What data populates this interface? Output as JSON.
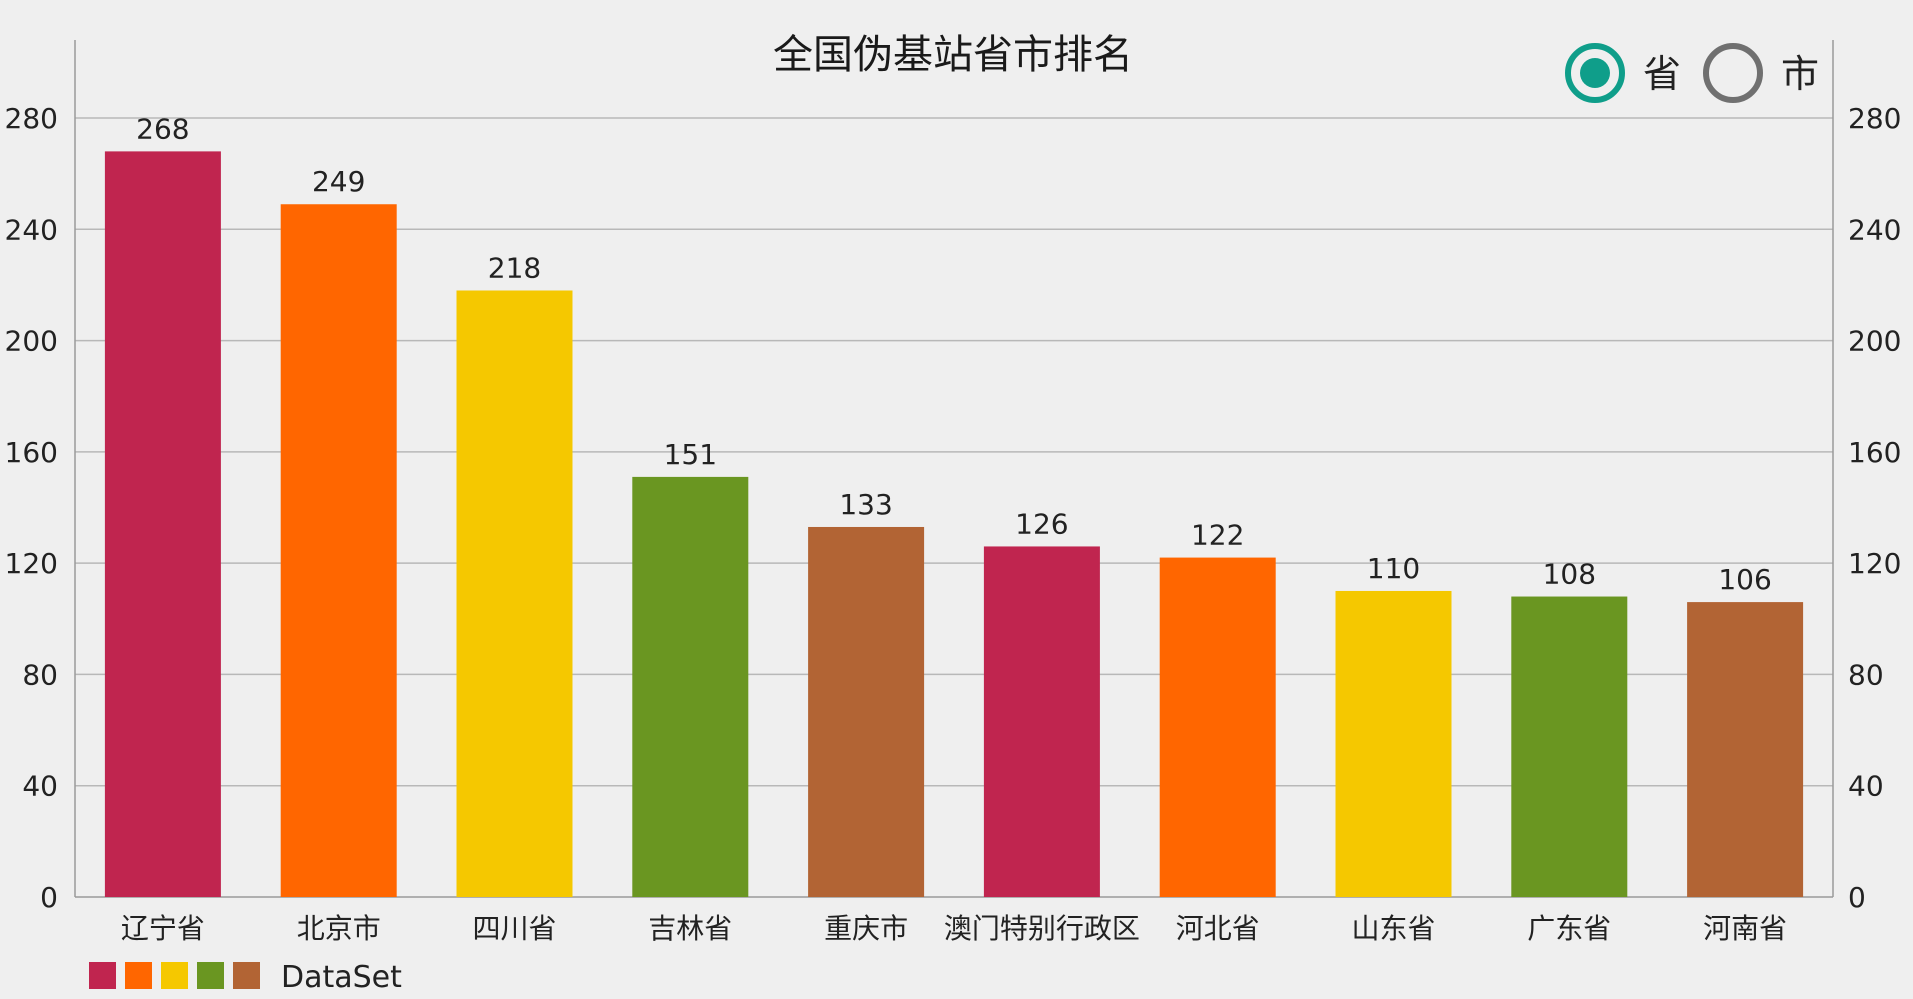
{
  "chart_data": {
    "type": "bar",
    "title": "全国伪基站省市排名",
    "categories": [
      "辽宁省",
      "北京市",
      "四川省",
      "吉林省",
      "重庆市",
      "澳门特别行政区",
      "河北省",
      "山东省",
      "广东省",
      "河南省"
    ],
    "series": [
      {
        "name": "DataSet",
        "values": [
          268,
          249,
          218,
          151,
          133,
          126,
          122,
          110,
          108,
          106
        ]
      }
    ],
    "ylim": [
      0,
      300
    ],
    "yticks": [
      0,
      40,
      80,
      120,
      160,
      200,
      240,
      280
    ],
    "y_axis_right": true,
    "grid": true,
    "legend_position": "bottom-left",
    "colors": [
      "#c0254f",
      "#ff6600",
      "#f5c800",
      "#6a9621",
      "#b26434"
    ]
  },
  "controls": {
    "options": [
      {
        "label": "省",
        "selected": true
      },
      {
        "label": "市",
        "selected": false
      }
    ],
    "selected_color": "#0f9e8a",
    "unselected_color": "#707070"
  }
}
